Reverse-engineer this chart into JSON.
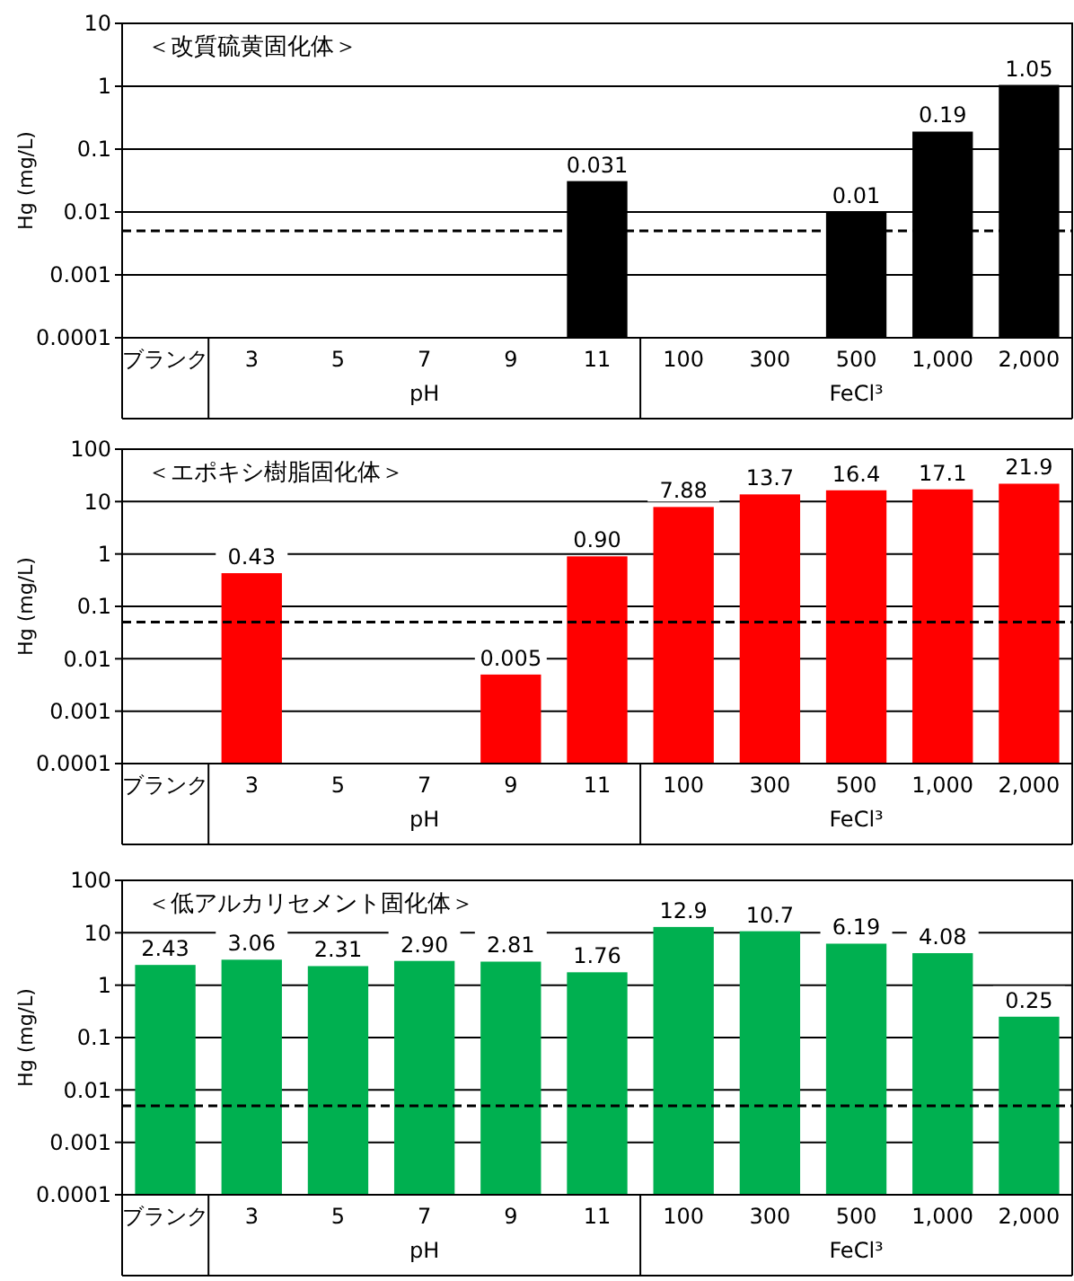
{
  "chart_data": [
    {
      "type": "bar",
      "title": "＜改質硫黄固化体＞",
      "ylabel": "Hg (mg/L)",
      "categories": [
        "ブランク",
        "3",
        "5",
        "7",
        "9",
        "11",
        "100",
        "300",
        "500",
        "1,000",
        "2,000"
      ],
      "values": [
        null,
        null,
        null,
        null,
        null,
        0.031,
        null,
        null,
        0.01,
        0.19,
        1.05
      ],
      "color": "#000000",
      "log": true,
      "ylim": [
        0.0001,
        10
      ],
      "yticks": [
        0.0001,
        0.001,
        0.01,
        0.1,
        1,
        10
      ],
      "grid": "y",
      "data_labels": true,
      "ref_lines": [
        {
          "axis": "y",
          "value": 0.005,
          "color": "#000000",
          "line_style": "dashed"
        }
      ],
      "annotations": [
        "pH",
        "FeCl³"
      ]
    },
    {
      "type": "bar",
      "title": "＜エポキシ樹脂固化体＞",
      "ylabel": "Hg (mg/L)",
      "categories": [
        "ブランク",
        "3",
        "5",
        "7",
        "9",
        "11",
        "100",
        "300",
        "500",
        "1,000",
        "2,000"
      ],
      "values": [
        null,
        0.43,
        null,
        null,
        0.005,
        0.9,
        7.88,
        13.7,
        16.4,
        17.1,
        21.9
      ],
      "value_labels": [
        null,
        "0.43",
        null,
        null,
        "0.005",
        "0.90",
        "7.88",
        "13.7",
        "16.4",
        "17.1",
        "21.9"
      ],
      "color": "#ff0000",
      "log": true,
      "ylim": [
        0.0001,
        100
      ],
      "yticks": [
        0.0001,
        0.001,
        0.01,
        0.1,
        1,
        10,
        100
      ],
      "grid": "y",
      "ref_lines": [
        {
          "axis": "y",
          "value": 0.05,
          "color": "#000000",
          "line_style": "dashed"
        }
      ],
      "annotations": [
        "pH",
        "FeCl³"
      ]
    },
    {
      "type": "bar",
      "title": "＜低アルカリセメント固化体＞",
      "ylabel": "Hg (mg/L)",
      "categories": [
        "ブランク",
        "3",
        "5",
        "7",
        "9",
        "11",
        "100",
        "300",
        "500",
        "1,000",
        "2,000"
      ],
      "values": [
        2.43,
        3.06,
        2.31,
        2.9,
        2.81,
        1.76,
        12.9,
        10.7,
        6.19,
        4.08,
        0.25
      ],
      "value_labels": [
        "2.43",
        "3.06",
        "2.31",
        "2.90",
        "2.81",
        "1.76",
        "12.9",
        "10.7",
        "6.19",
        "4.08",
        "0.25"
      ],
      "color": "#00b050",
      "log": true,
      "ylim": [
        0.0001,
        100
      ],
      "yticks": [
        0.0001,
        0.001,
        0.01,
        0.1,
        1,
        10,
        100
      ],
      "grid": "y",
      "ref_lines": [
        {
          "axis": "y",
          "value": 0.005,
          "color": "#000000",
          "line_style": "dashed"
        }
      ],
      "annotations": [
        "pH",
        "FeCl³"
      ]
    }
  ]
}
